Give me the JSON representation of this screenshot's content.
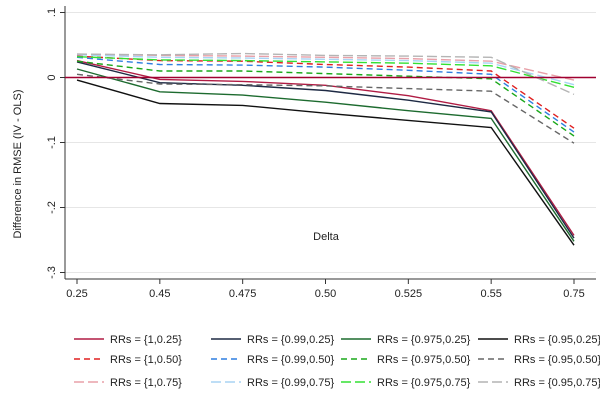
{
  "chart_data": {
    "type": "line",
    "title": "",
    "xlabel": "Delta",
    "ylabel": "Difference in RMSE (IV - OLS)",
    "categories": [
      "0.25",
      "0.45",
      "0.475",
      "0.50",
      "0.525",
      "0.55",
      "0.75"
    ],
    "y_ticks": [
      ".1",
      "0",
      "-.1",
      "-.2",
      "-.3"
    ],
    "y_tick_values": [
      0.1,
      0,
      -0.1,
      -0.2,
      -0.3
    ],
    "ylim": [
      -0.31,
      0.11
    ],
    "reference_line": {
      "y": 0,
      "color": "#a00030"
    },
    "grid": "horizontal",
    "legend_position": "bottom",
    "series": [
      {
        "name": "RRs = {1,0.25}",
        "color": "#b01c44",
        "dash": "solid",
        "values": [
          0.026,
          -0.003,
          -0.006,
          -0.012,
          -0.028,
          -0.051,
          -0.243
        ]
      },
      {
        "name": "RRs = {0.99,0.25}",
        "color": "#1e2a44",
        "dash": "solid",
        "values": [
          0.024,
          -0.008,
          -0.012,
          -0.02,
          -0.035,
          -0.053,
          -0.247
        ]
      },
      {
        "name": "RRs = {0.975,0.25}",
        "color": "#1d6b2f",
        "dash": "solid",
        "values": [
          0.013,
          -0.022,
          -0.027,
          -0.038,
          -0.051,
          -0.063,
          -0.252
        ]
      },
      {
        "name": "RRs = {0.95,0.25}",
        "color": "#111111",
        "dash": "solid",
        "values": [
          -0.004,
          -0.04,
          -0.043,
          -0.055,
          -0.066,
          -0.077,
          -0.258
        ]
      },
      {
        "name": "RRs = {1,0.50}",
        "color": "#e02020",
        "dash": "dashed",
        "values": [
          0.033,
          0.026,
          0.025,
          0.02,
          0.016,
          0.01,
          -0.078
        ]
      },
      {
        "name": "RRs = {0.99,0.50}",
        "color": "#2f7fe0",
        "dash": "dashed",
        "values": [
          0.031,
          0.02,
          0.019,
          0.016,
          0.011,
          0.005,
          -0.084
        ]
      },
      {
        "name": "RRs = {0.975,0.50}",
        "color": "#1aa81a",
        "dash": "dashed",
        "values": [
          0.025,
          0.01,
          0.01,
          0.006,
          0.002,
          -0.002,
          -0.09
        ]
      },
      {
        "name": "RRs = {0.95,0.50}",
        "color": "#666666",
        "dash": "dashed",
        "values": [
          0.005,
          -0.01,
          -0.011,
          -0.013,
          -0.017,
          -0.021,
          -0.101
        ]
      },
      {
        "name": "RRs = {1,0.75}",
        "color": "#e8a0a8",
        "dash": "longdash",
        "values": [
          0.036,
          0.034,
          0.033,
          0.031,
          0.029,
          0.025,
          -0.004
        ]
      },
      {
        "name": "RRs = {0.99,0.75}",
        "color": "#a8d4f4",
        "dash": "longdash",
        "values": [
          0.035,
          0.031,
          0.03,
          0.028,
          0.026,
          0.022,
          -0.011
        ]
      },
      {
        "name": "RRs = {0.975,0.75}",
        "color": "#33e033",
        "dash": "longdash",
        "values": [
          0.032,
          0.027,
          0.026,
          0.024,
          0.022,
          0.018,
          -0.015
        ]
      },
      {
        "name": "RRs = {0.95,0.75}",
        "color": "#b4b4b4",
        "dash": "longdash",
        "values": [
          0.036,
          0.035,
          0.037,
          0.034,
          0.033,
          0.031,
          -0.026
        ]
      }
    ]
  }
}
